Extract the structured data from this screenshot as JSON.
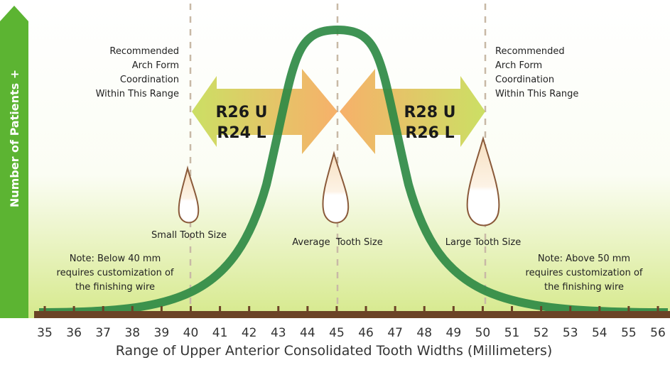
{
  "y_axis_label": "Number of Patients +",
  "x_axis": {
    "title": "Range of Upper Anterior Consolidated Tooth Widths (Millimeters)",
    "ticks": [
      35,
      36,
      37,
      38,
      39,
      40,
      41,
      42,
      43,
      44,
      45,
      46,
      47,
      48,
      49,
      50,
      51,
      52,
      53,
      54,
      55,
      56
    ]
  },
  "ranges": [
    {
      "lines": [
        "Recommended",
        "Arch Form",
        "Coordination",
        "Within This Range"
      ]
    },
    {
      "lines": [
        "Recommended",
        "Arch Form",
        "Coordination",
        "Within This Range"
      ]
    }
  ],
  "arrows": [
    {
      "lines": [
        "R26 U",
        "R24 L"
      ]
    },
    {
      "lines": [
        "R28 U",
        "R26 L"
      ]
    }
  ],
  "teeth": [
    "Small Tooth Size",
    "Average  Tooth Size",
    "Large Tooth Size"
  ],
  "notes": [
    {
      "lines": [
        "Note: Below 40 mm",
        "requires customization of",
        "the finishing wire"
      ]
    },
    {
      "lines": [
        "Note: Above 50 mm",
        "requires customization of",
        "the finishing wire"
      ]
    }
  ]
}
